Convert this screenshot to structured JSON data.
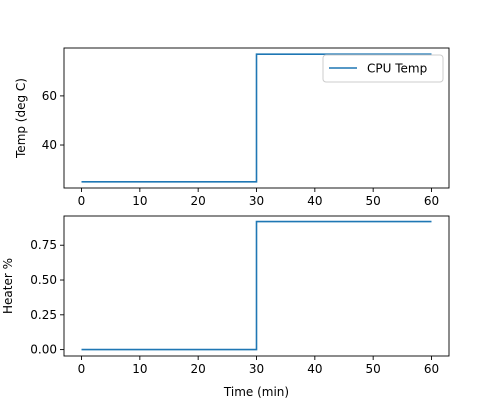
{
  "chart_data": [
    {
      "type": "line",
      "xlabel": "",
      "ylabel": "Temp (deg C)",
      "xlim": [
        -3,
        63
      ],
      "ylim": [
        22.5,
        79.5
      ],
      "xticks": [
        0,
        10,
        20,
        30,
        40,
        50,
        60
      ],
      "yticks": [
        40,
        60
      ],
      "legend": {
        "placement": "top-right",
        "entries": [
          "CPU Temp"
        ]
      },
      "series": [
        {
          "name": "CPU Temp",
          "color": "#1f77b4",
          "step": true,
          "x": [
            0,
            30,
            30,
            60
          ],
          "y": [
            25,
            25,
            77,
            77
          ]
        }
      ]
    },
    {
      "type": "line",
      "xlabel": "Time (min)",
      "ylabel": "Heater %",
      "xlim": [
        -3,
        63
      ],
      "ylim": [
        -0.046,
        0.96
      ],
      "xticks": [
        0,
        10,
        20,
        30,
        40,
        50,
        60
      ],
      "yticks": [
        0.0,
        0.25,
        0.5,
        0.75
      ],
      "ytick_labels": [
        "0.00",
        "0.25",
        "0.50",
        "0.75"
      ],
      "series": [
        {
          "color": "#1f77b4",
          "step": true,
          "x": [
            0,
            30,
            30,
            60
          ],
          "y": [
            0,
            0,
            0.92,
            0.92
          ]
        }
      ]
    }
  ]
}
